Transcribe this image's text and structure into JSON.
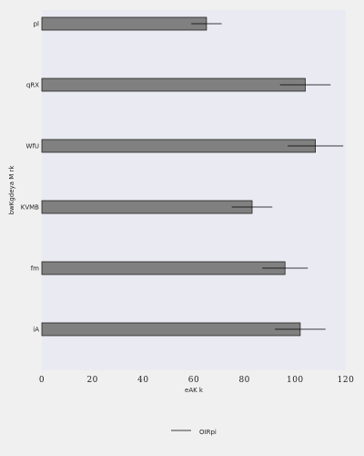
{
  "chart_data": {
    "type": "bar",
    "orientation": "horizontal",
    "categories": [
      "pl",
      "qRX",
      "WfU",
      "KVMB",
      "fm",
      "iA"
    ],
    "values": [
      65,
      104,
      108,
      83,
      96,
      102
    ],
    "errors": [
      6,
      10,
      11,
      8,
      9,
      10
    ],
    "xlabel": "eAK k",
    "ylabel": "bwKgdeya M rk",
    "xlim": [
      0,
      120
    ],
    "xticks": [
      0,
      20,
      40,
      60,
      80,
      100,
      120
    ],
    "legend": {
      "label": "OIRpi",
      "placement": "bottom-center"
    },
    "grid": false,
    "colors": {
      "plot_background": "#eaeaf2",
      "bar_fill": "#808080",
      "bar_edge": "#222222",
      "error_bar": "#000000"
    }
  }
}
